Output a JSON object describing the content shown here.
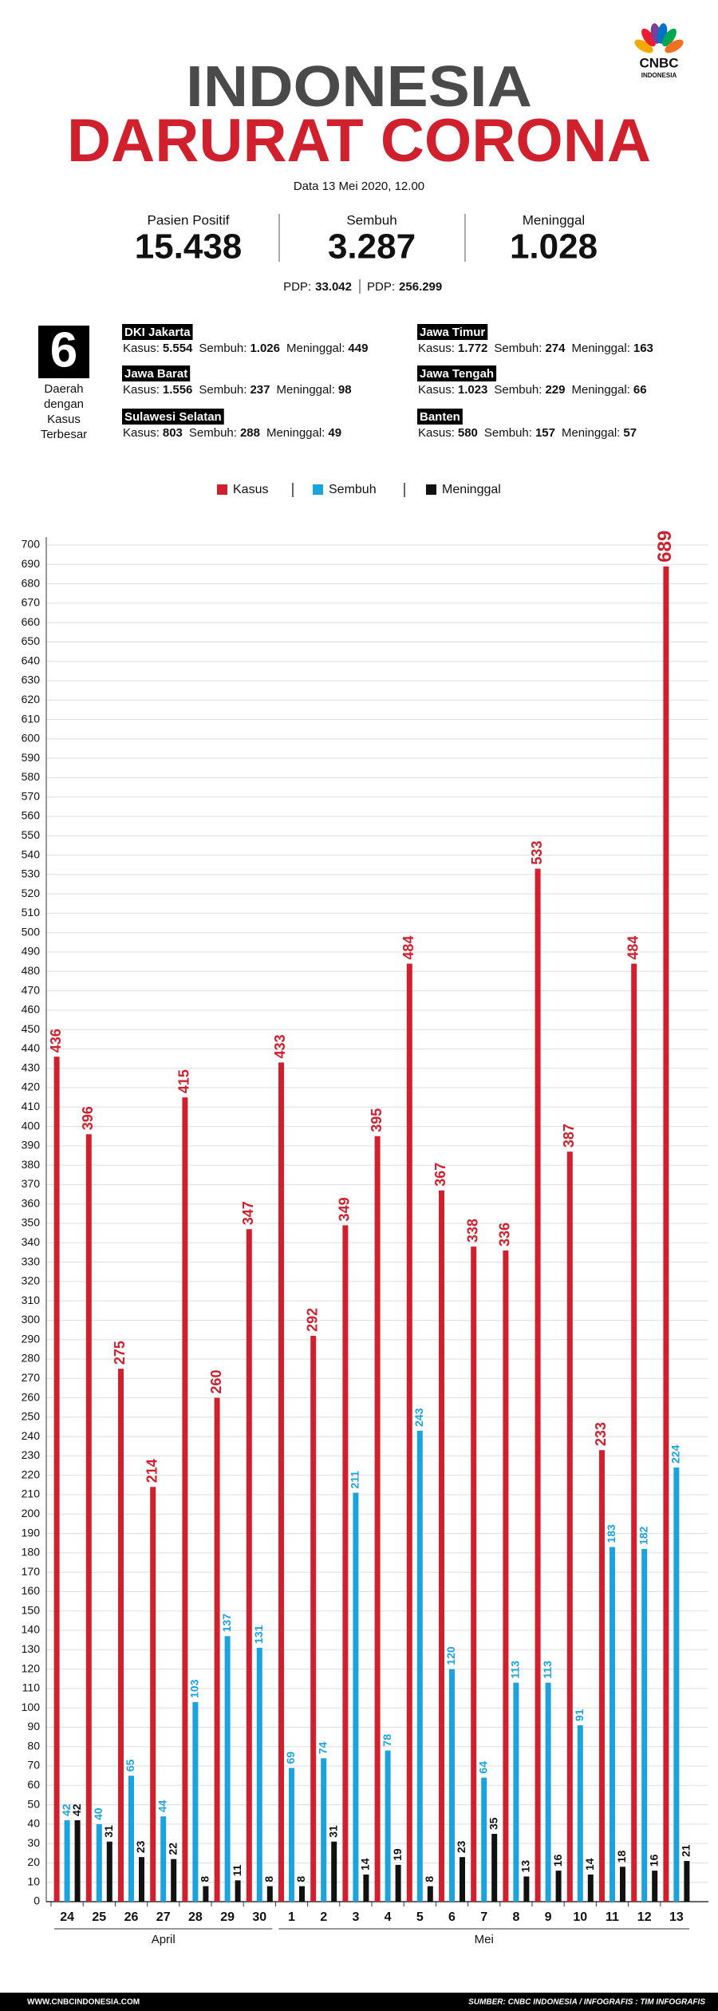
{
  "header": {
    "logo": "CNBC",
    "logo_sub": "INDONESIA",
    "title_line1": "INDONESIA",
    "title_line2": "DARURAT CORONA",
    "date": "Data 13 Mei 2020, 12.00"
  },
  "stats": [
    {
      "label": "Pasien Positif",
      "value": "15.438"
    },
    {
      "label": "Sembuh",
      "value": "3.287"
    },
    {
      "label": "Meninggal",
      "value": "1.028"
    }
  ],
  "pdp": [
    {
      "label": "PDP:",
      "value": "33.042"
    },
    {
      "label": "PDP:",
      "value": "256.299"
    }
  ],
  "regions": {
    "count": "6",
    "caption": [
      "Daerah",
      "dengan",
      "Kasus",
      "Terbesar"
    ],
    "labels": {
      "kasus": "Kasus:",
      "sembuh": "Sembuh:",
      "meninggal": "Meninggal:"
    },
    "items": [
      {
        "name": "DKI Jakarta",
        "kasus": "5.554",
        "sembuh": "1.026",
        "meninggal": "449"
      },
      {
        "name": "Jawa Barat",
        "kasus": "1.556",
        "sembuh": "237",
        "meninggal": "98"
      },
      {
        "name": "Sulawesi Selatan",
        "kasus": "803",
        "sembuh": "288",
        "meninggal": "49"
      },
      {
        "name": "Jawa Timur",
        "kasus": "1.772",
        "sembuh": "274",
        "meninggal": "163"
      },
      {
        "name": "Jawa Tengah",
        "kasus": "1.023",
        "sembuh": "229",
        "meninggal": "66"
      },
      {
        "name": "Banten",
        "kasus": "580",
        "sembuh": "157",
        "meninggal": "57"
      }
    ]
  },
  "chart_data": {
    "type": "bar",
    "categories": [
      "24",
      "25",
      "26",
      "27",
      "28",
      "29",
      "30",
      "1",
      "2",
      "3",
      "4",
      "5",
      "6",
      "7",
      "8",
      "9",
      "10",
      "11",
      "12",
      "13"
    ],
    "x_groups": [
      "April",
      "Mei"
    ],
    "series": [
      {
        "name": "Kasus",
        "color": "#d0202e",
        "values": [
          436,
          396,
          275,
          214,
          415,
          260,
          347,
          433,
          292,
          349,
          395,
          484,
          367,
          338,
          336,
          533,
          387,
          233,
          484,
          689
        ]
      },
      {
        "name": "Sembuh",
        "color": "#1ba3dd",
        "values": [
          42,
          40,
          65,
          44,
          103,
          137,
          131,
          69,
          74,
          211,
          78,
          243,
          120,
          64,
          113,
          113,
          91,
          183,
          182,
          224
        ]
      },
      {
        "name": "Meninggal",
        "color": "#111111",
        "values": [
          42,
          31,
          23,
          22,
          8,
          11,
          8,
          8,
          31,
          14,
          19,
          8,
          23,
          35,
          13,
          16,
          14,
          18,
          16,
          21
        ]
      }
    ],
    "ylim": [
      0,
      700
    ],
    "yticks": [
      0,
      10,
      20,
      30,
      40,
      50,
      60,
      70,
      80,
      90,
      100,
      110,
      120,
      130,
      140,
      150,
      160,
      170,
      180,
      190,
      200,
      210,
      220,
      230,
      240,
      250,
      260,
      270,
      280,
      290,
      300,
      310,
      320,
      330,
      340,
      350,
      360,
      370,
      380,
      390,
      400,
      410,
      420,
      430,
      440,
      450,
      460,
      470,
      480,
      490,
      500,
      510,
      520,
      530,
      540,
      550,
      560,
      570,
      580,
      590,
      600,
      610,
      620,
      630,
      640,
      650,
      660,
      670,
      680,
      690,
      700
    ],
    "grid": true,
    "value_labels_shown": true
  },
  "footer": {
    "website": "WWW.CNBCINDONESIA.COM",
    "source": "SUMBER: CNBC INDONESIA / INFOGRAFIS : TIM INFOGRAFIS"
  }
}
